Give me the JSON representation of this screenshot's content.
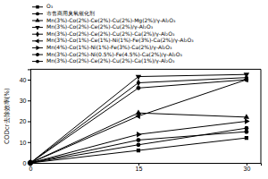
{
  "chart_data": {
    "type": "line",
    "y_label": "CODcr去除效率(%)",
    "x": [
      0,
      15,
      30
    ],
    "xlim": [
      0,
      32
    ],
    "xticks": [
      0,
      15,
      30
    ],
    "ylim": [
      0,
      45
    ],
    "yticks": [
      0,
      10,
      20,
      30,
      40
    ],
    "legend": "top",
    "series": [
      {
        "name": "O₃",
        "color": "#000000",
        "marker": "square",
        "values": [
          0,
          6,
          12
        ]
      },
      {
        "name": "市售商用臭氧催化剂",
        "color": "#000000",
        "marker": "circle",
        "values": [
          0,
          8.7,
          16.7
        ]
      },
      {
        "name": "Mn(3%)-Co(2%)-Ce(2%)-Cu(2%)-Mg(2%)/γ-Al₂O₃",
        "color": "#000000",
        "marker": "triangle-up",
        "values": [
          0,
          24,
          22
        ]
      },
      {
        "name": "Mn(3%)-Co(2%)-Ce(2%)-Cu(2%)/γ-Al₂O₃",
        "color": "#000000",
        "marker": "triangle-down",
        "values": [
          0,
          41.5,
          42.5
        ]
      },
      {
        "name": "Mn(3%)-Co(2%)-Ce(2%)-Cu(2%)-Ca(2%)/γ-Al₂O₃",
        "color": "#000000",
        "marker": "diamond",
        "values": [
          0,
          38.5,
          41
        ]
      },
      {
        "name": "Mn(3%)-Co(1%)-Ce(1%)-Ni(1%)-Fe(3%)-Ca(2%)/γ-Al₂O₃",
        "color": "#000000",
        "marker": "triangle-left",
        "values": [
          0,
          22.5,
          40
        ]
      },
      {
        "name": "Mn(4%)-Co(1%)-Ni(1%)-Fe(3%)-Ca(2%)/γ-Al₂O₃",
        "color": "#000000",
        "marker": "triangle-right",
        "values": [
          0,
          13.7,
          20
        ]
      },
      {
        "name": "Mn(3%)-Co(2%)-Ni(0.5%)-Fe(4.5%)-Ca(2%)/γ-Al₂O₃",
        "color": "#000000",
        "marker": "hexagon",
        "values": [
          0,
          11,
          15
        ]
      },
      {
        "name": "Mn(3%)-Co(2%)-Ce(2%)-Cu(2%)-Ca(1%)/γ-Al₂O₃",
        "color": "#000000",
        "marker": "circle",
        "values": [
          0,
          36,
          40
        ]
      }
    ]
  }
}
